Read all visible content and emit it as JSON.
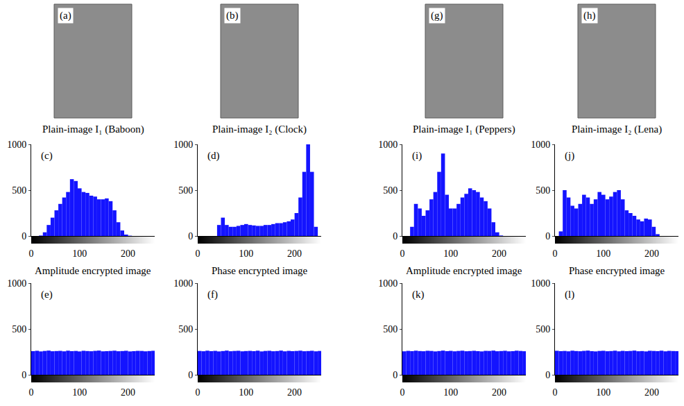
{
  "images": [
    {
      "label": "(a)",
      "caption": "Plain-image I₁ (Baboon)"
    },
    {
      "label": "(b)",
      "caption": "Plain-image I₂ (Clock)"
    },
    {
      "label": "(g)",
      "caption": "Plain-image I₁ (Peppers)"
    },
    {
      "label": "(h)",
      "caption": "Plain-image I₂ (Lena)"
    }
  ],
  "chart_data": [
    {
      "type": "histogram",
      "annotations": [
        "(c)"
      ],
      "color": "#1414ff",
      "grid": false,
      "xlim": [
        0,
        255
      ],
      "ylim": [
        0,
        1000
      ],
      "xticks": [
        0,
        100,
        200
      ],
      "yticks": [
        0,
        500,
        1000
      ],
      "bins": [
        0,
        8,
        16,
        24,
        32,
        40,
        48,
        56,
        64,
        72,
        80,
        88,
        96,
        104,
        112,
        120,
        128,
        136,
        144,
        152,
        160,
        168,
        176,
        184,
        192,
        200,
        208,
        216,
        224,
        232,
        240,
        248,
        256
      ],
      "values": [
        0,
        0,
        5,
        40,
        120,
        200,
        280,
        350,
        420,
        480,
        620,
        600,
        520,
        480,
        470,
        440,
        430,
        400,
        400,
        410,
        380,
        280,
        150,
        60,
        15,
        3,
        0,
        0,
        0,
        0,
        0,
        0
      ]
    },
    {
      "type": "histogram",
      "annotations": [
        "(d)"
      ],
      "color": "#1414ff",
      "grid": false,
      "xlim": [
        0,
        255
      ],
      "ylim": [
        0,
        1000
      ],
      "xticks": [
        0,
        100,
        200
      ],
      "yticks": [
        0,
        500,
        1000
      ],
      "bins": [
        0,
        8,
        16,
        24,
        32,
        40,
        48,
        56,
        64,
        72,
        80,
        88,
        96,
        104,
        112,
        120,
        128,
        136,
        144,
        152,
        160,
        168,
        176,
        184,
        192,
        200,
        208,
        216,
        224,
        232,
        240,
        248,
        256
      ],
      "values": [
        0,
        0,
        0,
        0,
        0,
        120,
        200,
        120,
        100,
        100,
        110,
        120,
        130,
        120,
        115,
        110,
        110,
        120,
        120,
        130,
        140,
        140,
        150,
        160,
        180,
        250,
        420,
        700,
        1000,
        700,
        100,
        0
      ]
    },
    {
      "type": "histogram",
      "annotations": [
        "(i)"
      ],
      "color": "#1414ff",
      "grid": false,
      "xlim": [
        0,
        255
      ],
      "ylim": [
        0,
        1000
      ],
      "xticks": [
        0,
        100,
        200
      ],
      "yticks": [
        0,
        500,
        1000
      ],
      "bins": [
        0,
        8,
        16,
        24,
        32,
        40,
        48,
        56,
        64,
        72,
        80,
        88,
        96,
        104,
        112,
        120,
        128,
        136,
        144,
        152,
        160,
        168,
        176,
        184,
        192,
        200,
        208,
        216,
        224,
        232,
        240,
        248,
        256
      ],
      "values": [
        0,
        0,
        100,
        350,
        300,
        220,
        280,
        400,
        480,
        700,
        900,
        450,
        300,
        300,
        350,
        420,
        460,
        520,
        500,
        480,
        420,
        380,
        300,
        150,
        40,
        5,
        0,
        0,
        0,
        0,
        0,
        0
      ]
    },
    {
      "type": "histogram",
      "annotations": [
        "(j)"
      ],
      "color": "#1414ff",
      "grid": false,
      "xlim": [
        0,
        255
      ],
      "ylim": [
        0,
        1000
      ],
      "xticks": [
        0,
        100,
        200
      ],
      "yticks": [
        0,
        500,
        1000
      ],
      "bins": [
        0,
        8,
        16,
        24,
        32,
        40,
        48,
        56,
        64,
        72,
        80,
        88,
        96,
        104,
        112,
        120,
        128,
        136,
        144,
        152,
        160,
        168,
        176,
        184,
        192,
        200,
        208,
        216,
        224,
        232,
        240,
        248,
        256
      ],
      "values": [
        0,
        50,
        500,
        420,
        330,
        300,
        350,
        450,
        420,
        350,
        400,
        480,
        450,
        400,
        430,
        480,
        500,
        400,
        280,
        250,
        220,
        180,
        160,
        190,
        180,
        100,
        20,
        0,
        0,
        0,
        0,
        0
      ]
    },
    {
      "type": "histogram",
      "title": "Amplitude encrypted image",
      "annotations": [
        "(e)"
      ],
      "color": "#1414ff",
      "grid": false,
      "xlim": [
        0,
        255
      ],
      "ylim": [
        0,
        1000
      ],
      "xticks": [
        0,
        100,
        200
      ],
      "yticks": [
        0,
        500,
        1000
      ],
      "bins": [
        0,
        8,
        16,
        24,
        32,
        40,
        48,
        56,
        64,
        72,
        80,
        88,
        96,
        104,
        112,
        120,
        128,
        136,
        144,
        152,
        160,
        168,
        176,
        184,
        192,
        200,
        208,
        216,
        224,
        232,
        240,
        248,
        256
      ],
      "values": [
        258,
        262,
        255,
        260,
        264,
        257,
        259,
        261,
        256,
        263,
        258,
        260,
        255,
        262,
        259,
        257,
        261,
        264,
        256,
        258,
        260,
        263,
        257,
        259,
        262,
        255,
        258,
        261,
        260,
        256,
        259,
        262
      ]
    },
    {
      "type": "histogram",
      "title": "Phase encrypted image",
      "annotations": [
        "(f)"
      ],
      "color": "#1414ff",
      "grid": false,
      "xlim": [
        0,
        255
      ],
      "ylim": [
        0,
        1000
      ],
      "xticks": [
        0,
        100,
        200
      ],
      "yticks": [
        0,
        500,
        1000
      ],
      "bins": [
        0,
        8,
        16,
        24,
        32,
        40,
        48,
        56,
        64,
        72,
        80,
        88,
        96,
        104,
        112,
        120,
        128,
        136,
        144,
        152,
        160,
        168,
        176,
        184,
        192,
        200,
        208,
        216,
        224,
        232,
        240,
        248,
        256
      ],
      "values": [
        260,
        257,
        263,
        258,
        261,
        255,
        259,
        264,
        257,
        260,
        262,
        256,
        259,
        261,
        258,
        263,
        255,
        260,
        262,
        257,
        259,
        264,
        256,
        261,
        258,
        260,
        263,
        257,
        259,
        262,
        256,
        260
      ]
    },
    {
      "type": "histogram",
      "title": "Amplitude encrypted image",
      "annotations": [
        "(k)"
      ],
      "color": "#1414ff",
      "grid": false,
      "xlim": [
        0,
        255
      ],
      "ylim": [
        0,
        1000
      ],
      "xticks": [
        0,
        100,
        200
      ],
      "yticks": [
        0,
        500,
        1000
      ],
      "bins": [
        0,
        8,
        16,
        24,
        32,
        40,
        48,
        56,
        64,
        72,
        80,
        88,
        96,
        104,
        112,
        120,
        128,
        136,
        144,
        152,
        160,
        168,
        176,
        184,
        192,
        200,
        208,
        216,
        224,
        232,
        240,
        248,
        256
      ],
      "values": [
        256,
        261,
        258,
        263,
        259,
        257,
        262,
        260,
        255,
        259,
        264,
        258,
        261,
        256,
        260,
        263,
        257,
        259,
        262,
        258,
        255,
        261,
        260,
        264,
        257,
        259,
        262,
        256,
        258,
        263,
        260,
        257
      ]
    },
    {
      "type": "histogram",
      "title": "Phase encrypted image",
      "annotations": [
        "(l)"
      ],
      "color": "#1414ff",
      "grid": false,
      "xlim": [
        0,
        255
      ],
      "ylim": [
        0,
        1000
      ],
      "xticks": [
        0,
        100,
        200
      ],
      "yticks": [
        0,
        500,
        1000
      ],
      "bins": [
        0,
        8,
        16,
        24,
        32,
        40,
        48,
        56,
        64,
        72,
        80,
        88,
        96,
        104,
        112,
        120,
        128,
        136,
        144,
        152,
        160,
        168,
        176,
        184,
        192,
        200,
        208,
        216,
        224,
        232,
        240,
        248,
        256
      ],
      "values": [
        262,
        258,
        260,
        256,
        263,
        259,
        257,
        261,
        264,
        258,
        255,
        260,
        262,
        257,
        259,
        263,
        256,
        261,
        258,
        260,
        264,
        257,
        259,
        255,
        262,
        260,
        258,
        263,
        256,
        261,
        259,
        258
      ]
    }
  ]
}
